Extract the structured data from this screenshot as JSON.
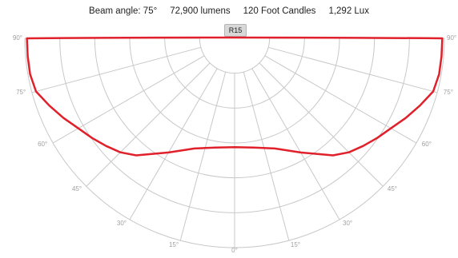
{
  "header": {
    "beam_angle": "Beam angle: 75°",
    "lumens": "72,900 lumens",
    "foot_candles": "120 Foot Candles",
    "lux": "1,292 Lux"
  },
  "badge": {
    "label": "R15"
  },
  "chart_data": {
    "type": "polar",
    "angle_ticks": [
      90,
      75,
      60,
      45,
      30,
      15,
      0,
      15,
      30,
      45,
      60,
      75,
      90
    ],
    "angle_tick_labels": [
      "90°",
      "75°",
      "60°",
      "45°",
      "30°",
      "15°",
      "0°",
      "15°",
      "30°",
      "45°",
      "60°",
      "75°",
      "90°"
    ],
    "angle_range": [
      -90,
      90
    ],
    "ring_count": 6,
    "series": [
      {
        "color": "#e0202a",
        "points": [
          [
            0,
            0.52
          ],
          [
            10,
            0.53
          ],
          [
            20,
            0.56
          ],
          [
            30,
            0.63
          ],
          [
            40,
            0.73
          ],
          [
            45,
            0.77
          ],
          [
            50,
            0.8
          ],
          [
            55,
            0.83
          ],
          [
            60,
            0.86
          ],
          [
            65,
            0.9
          ],
          [
            70,
            0.94
          ],
          [
            75,
            0.98
          ],
          [
            80,
            0.99
          ],
          [
            85,
            0.99
          ],
          [
            90,
            0.99
          ]
        ]
      }
    ],
    "grid": true,
    "grid_color": "#c8c8c8",
    "label_color": "#a0a0a0"
  }
}
